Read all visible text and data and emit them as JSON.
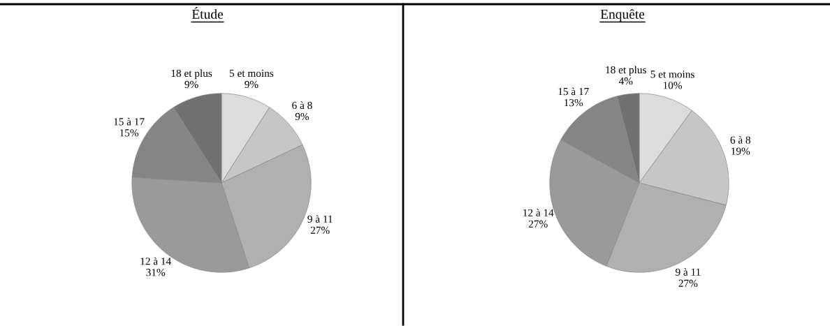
{
  "chart_data": [
    {
      "type": "pie",
      "title": "Étude",
      "categories": [
        "5 et moins",
        "6 à 8",
        "9 à 11",
        "12 à 14",
        "15 à 17",
        "18 et plus"
      ],
      "values": [
        9,
        9,
        27,
        31,
        15,
        9
      ],
      "value_labels": [
        "9%",
        "9%",
        "27%",
        "31%",
        "15%",
        "9%"
      ],
      "colors": [
        "#dcdcdc",
        "#c6c6c6",
        "#b0b0b0",
        "#9a9a9a",
        "#858585",
        "#717171"
      ]
    },
    {
      "type": "pie",
      "title": "Enquête",
      "categories": [
        "5 et moins",
        "6 à 8",
        "9 à 11",
        "12 à 14",
        "15 à 17",
        "18 et plus"
      ],
      "values": [
        10,
        19,
        27,
        27,
        13,
        4
      ],
      "value_labels": [
        "10%",
        "19%",
        "27%",
        "27%",
        "13%",
        "4%"
      ],
      "colors": [
        "#dcdcdc",
        "#c6c6c6",
        "#b0b0b0",
        "#9a9a9a",
        "#858585",
        "#717171"
      ]
    }
  ]
}
